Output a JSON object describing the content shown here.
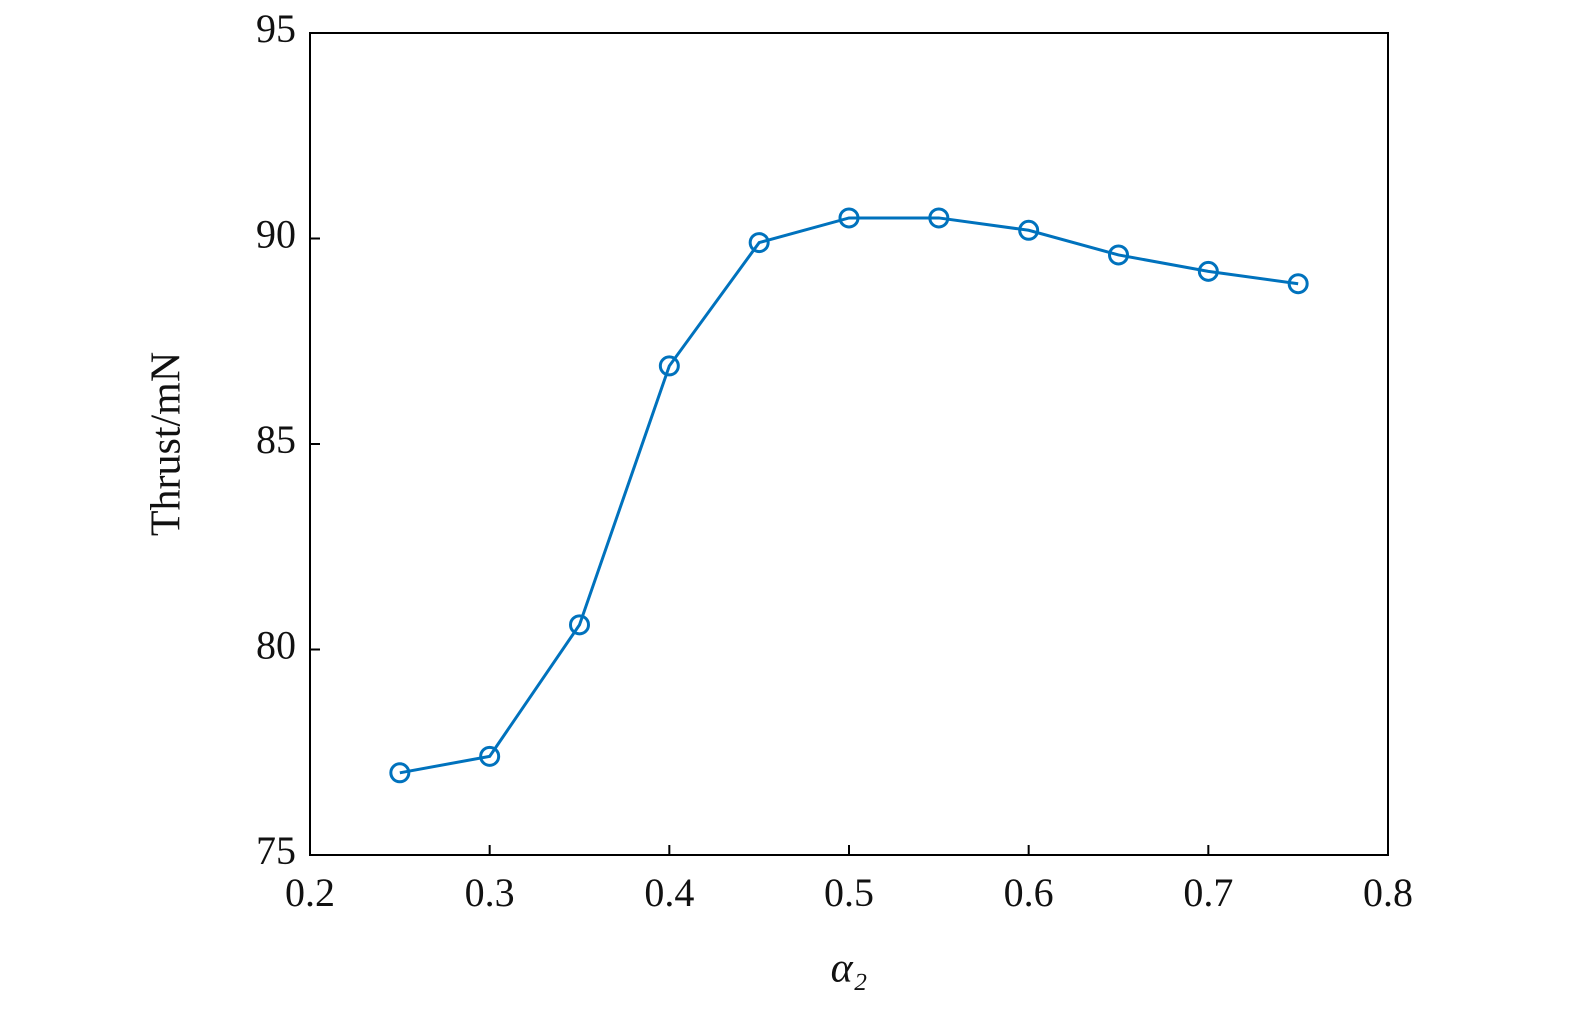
{
  "chart_data": {
    "type": "line",
    "xlabel": "α₂",
    "ylabel": "Thrust/mN",
    "x": [
      0.25,
      0.3,
      0.35,
      0.4,
      0.45,
      0.5,
      0.55,
      0.6,
      0.65,
      0.7,
      0.75
    ],
    "series": [
      {
        "color": "#0072bd",
        "values": [
          77.0,
          77.4,
          80.6,
          86.9,
          89.9,
          90.5,
          90.5,
          90.2,
          89.6,
          89.2,
          88.9
        ]
      }
    ],
    "xlim": [
      0.2,
      0.8
    ],
    "xticks": [
      0.2,
      0.3,
      0.4,
      0.5,
      0.6,
      0.7,
      0.8
    ],
    "ylim": [
      75,
      95
    ],
    "yticks": [
      75,
      80,
      85,
      90,
      95
    ],
    "grid": false
  }
}
